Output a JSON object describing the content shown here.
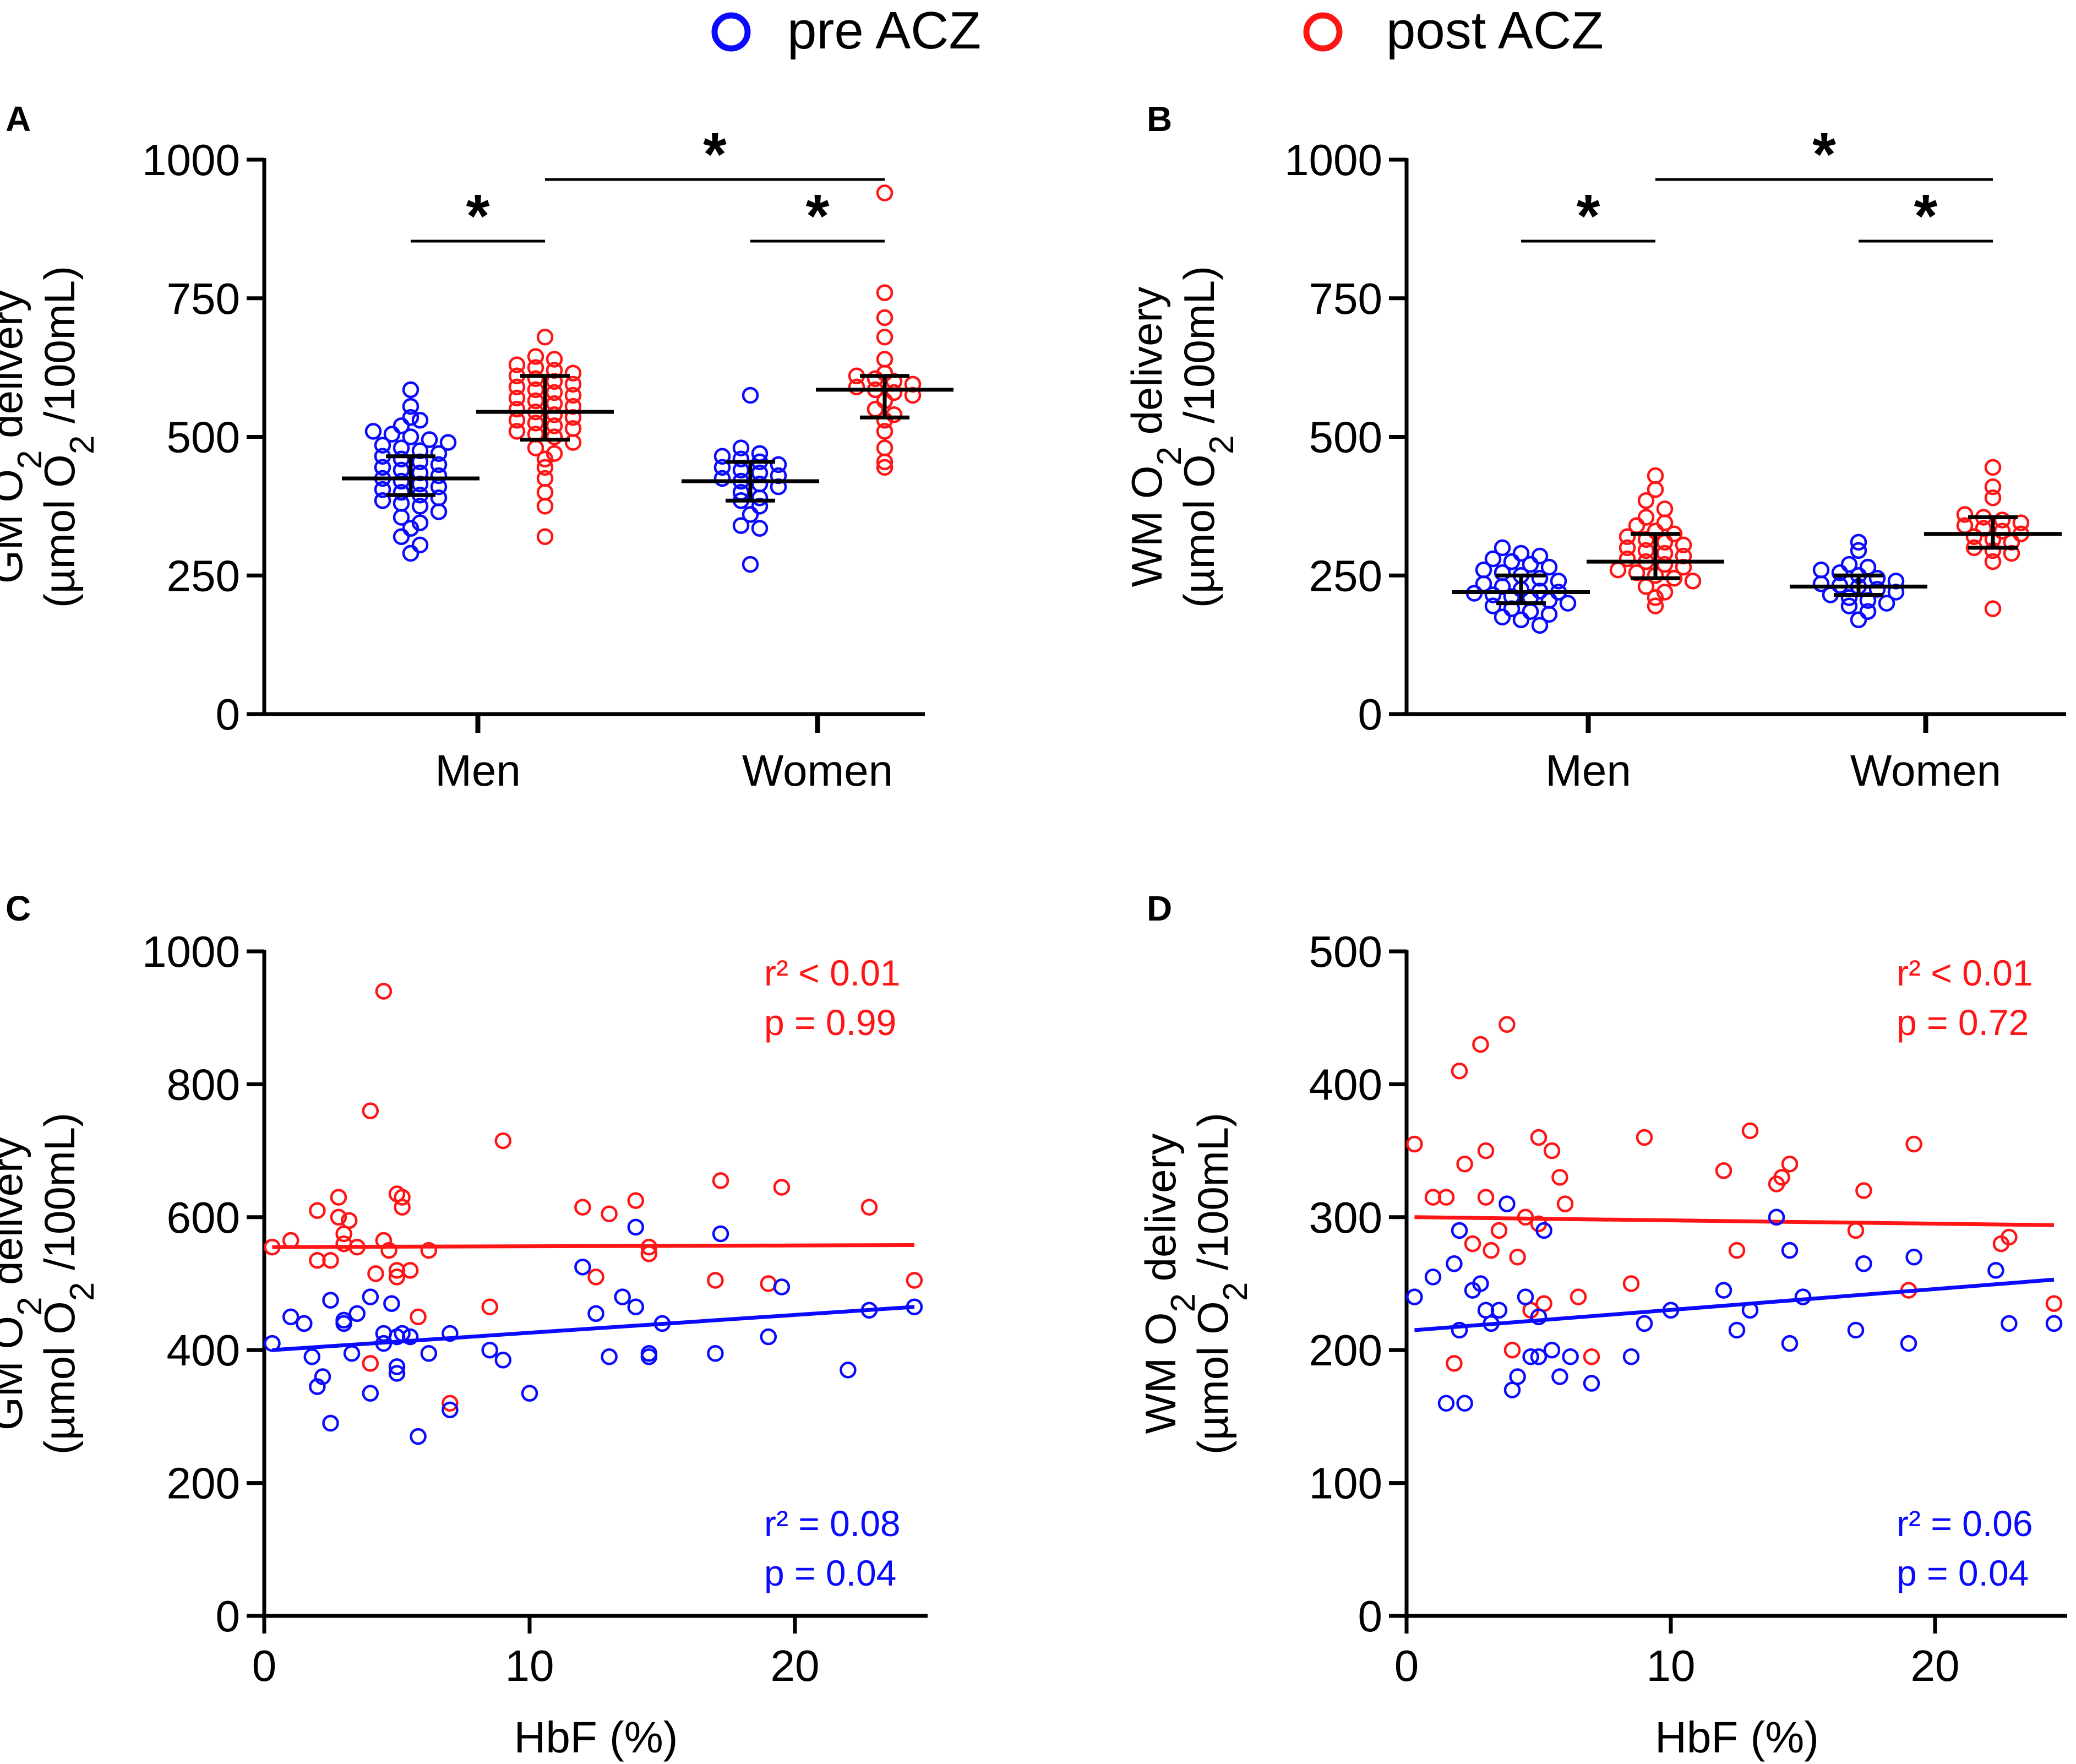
{
  "colors": {
    "pre": "#0a0aff",
    "post": "#ff1515",
    "black": "#000000"
  },
  "legend": [
    {
      "label": "pre ACZ",
      "color": "#0a0aff"
    },
    {
      "label": "post ACZ",
      "color": "#ff1515"
    }
  ],
  "chart_data": [
    {
      "panel_label": "A",
      "type": "scatter",
      "ylabel_line1": "GM  O2 delivery",
      "ylabel_line2": "(µmol O2 /100mL)",
      "ylim": [
        0,
        1000
      ],
      "yticks": [
        "0",
        "250",
        "500",
        "750",
        "1000"
      ],
      "categories": [
        "Men",
        "Women"
      ],
      "groups": [
        {
          "category": "Men",
          "series": "pre ACZ",
          "median": 425,
          "iqr": [
            395,
            465
          ],
          "values": [
            585,
            555,
            535,
            520,
            530,
            510,
            505,
            500,
            495,
            490,
            485,
            480,
            475,
            470,
            465,
            460,
            455,
            450,
            445,
            440,
            435,
            430,
            425,
            420,
            415,
            410,
            405,
            400,
            395,
            390,
            385,
            380,
            375,
            365,
            355,
            345,
            335,
            320,
            305,
            290
          ]
        },
        {
          "category": "Men",
          "series": "post ACZ",
          "median": 545,
          "iqr": [
            495,
            610
          ],
          "values": [
            680,
            645,
            640,
            630,
            625,
            620,
            615,
            610,
            605,
            600,
            595,
            590,
            585,
            580,
            575,
            570,
            565,
            560,
            555,
            550,
            545,
            540,
            535,
            530,
            525,
            520,
            515,
            510,
            505,
            500,
            490,
            480,
            470,
            460,
            445,
            425,
            400,
            375,
            320
          ]
        },
        {
          "category": "Women",
          "series": "pre ACZ",
          "median": 420,
          "iqr": [
            385,
            455
          ],
          "values": [
            575,
            480,
            470,
            465,
            460,
            455,
            450,
            445,
            440,
            435,
            430,
            425,
            420,
            415,
            410,
            400,
            390,
            385,
            375,
            360,
            340,
            335,
            270
          ]
        },
        {
          "category": "Women",
          "series": "post ACZ",
          "median": 585,
          "iqr": [
            535,
            610
          ],
          "values": [
            940,
            760,
            715,
            680,
            640,
            615,
            610,
            605,
            600,
            595,
            590,
            585,
            580,
            575,
            565,
            550,
            540,
            530,
            510,
            480,
            455,
            445
          ]
        }
      ],
      "significance": [
        {
          "label": "*",
          "from": "Men pre ACZ",
          "to": "Men post ACZ"
        },
        {
          "label": "*",
          "from": "Women pre ACZ",
          "to": "Women post ACZ"
        },
        {
          "label": "*",
          "from": "Men post ACZ",
          "to": "Women post ACZ"
        }
      ]
    },
    {
      "panel_label": "B",
      "type": "scatter",
      "ylabel_line1": "WM  O2 delivery",
      "ylabel_line2": "(µmol O2 /100mL)",
      "ylim": [
        0,
        1000
      ],
      "yticks": [
        "0",
        "250",
        "500",
        "750",
        "1000"
      ],
      "categories": [
        "Men",
        "Women"
      ],
      "groups": [
        {
          "category": "Men",
          "series": "pre ACZ",
          "median": 220,
          "iqr": [
            200,
            250
          ],
          "values": [
            300,
            290,
            285,
            280,
            275,
            270,
            265,
            260,
            255,
            250,
            245,
            240,
            235,
            230,
            225,
            222,
            220,
            218,
            215,
            212,
            210,
            205,
            200,
            195,
            190,
            185,
            180,
            175,
            170,
            160
          ]
        },
        {
          "category": "Men",
          "series": "post ACZ",
          "median": 275,
          "iqr": [
            245,
            325
          ],
          "values": [
            430,
            405,
            385,
            370,
            355,
            345,
            340,
            330,
            325,
            320,
            315,
            310,
            305,
            300,
            295,
            290,
            285,
            280,
            275,
            270,
            265,
            260,
            255,
            250,
            245,
            240,
            230,
            220,
            210,
            195
          ]
        },
        {
          "category": "Women",
          "series": "pre ACZ",
          "median": 230,
          "iqr": [
            215,
            250
          ],
          "values": [
            310,
            295,
            270,
            265,
            260,
            255,
            250,
            245,
            240,
            235,
            232,
            230,
            225,
            220,
            215,
            210,
            205,
            200,
            195,
            185,
            170
          ]
        },
        {
          "category": "Women",
          "series": "post ACZ",
          "median": 325,
          "iqr": [
            300,
            355
          ],
          "values": [
            445,
            410,
            390,
            360,
            355,
            350,
            345,
            340,
            335,
            330,
            325,
            320,
            315,
            310,
            300,
            295,
            290,
            275,
            190
          ]
        }
      ],
      "significance": [
        {
          "label": "*",
          "from": "Men pre ACZ",
          "to": "Men post ACZ"
        },
        {
          "label": "*",
          "from": "Women pre ACZ",
          "to": "Women post ACZ"
        },
        {
          "label": "*",
          "from": "Men post ACZ",
          "to": "Women post ACZ"
        }
      ]
    },
    {
      "panel_label": "C",
      "type": "scatter",
      "xlabel": "HbF (%)",
      "ylabel_line1": "GM O2 delivery",
      "ylabel_line2": "(µmol O2 /100mL)",
      "xlim": [
        0,
        25
      ],
      "ylim": [
        0,
        1000
      ],
      "xticks": [
        0,
        10,
        20
      ],
      "yticks": [
        0,
        200,
        400,
        600,
        800,
        1000
      ],
      "series": [
        {
          "name": "post ACZ",
          "fit": [
            [
              0.3,
              555
            ],
            [
              24.5,
              558
            ]
          ],
          "stat_lines": [
            "r² < 0.01",
            "p  = 0.99"
          ],
          "x": [
            0.3,
            1,
            1.5,
            2,
            2,
            2.5,
            2.8,
            2.8,
            3,
            3,
            3.2,
            3.5,
            4,
            4,
            4.2,
            4.5,
            4.5,
            4.7,
            5,
            5,
            5,
            5.2,
            5.2,
            5.5,
            5.8,
            6.2,
            7,
            8.5,
            9,
            12,
            12.5,
            13,
            14,
            14.5,
            14.5,
            17,
            17.2,
            19,
            19.5,
            22.8,
            24.5
          ],
          "y": [
            555,
            565,
            440,
            610,
            535,
            535,
            600,
            630,
            560,
            575,
            595,
            555,
            760,
            380,
            515,
            565,
            940,
            550,
            635,
            520,
            510,
            630,
            615,
            520,
            450,
            550,
            320,
            465,
            715,
            615,
            510,
            605,
            625,
            555,
            545,
            505,
            655,
            500,
            645,
            615,
            505
          ]
        },
        {
          "name": "pre ACZ",
          "fit": [
            [
              0.3,
              400
            ],
            [
              24.5,
              465
            ]
          ],
          "stat_lines": [
            "r² = 0.08",
            "p  = 0.04"
          ],
          "x": [
            0.3,
            1,
            1.5,
            1.8,
            2,
            2.2,
            2.5,
            2.5,
            3,
            3,
            3.3,
            3.5,
            4,
            4,
            4.5,
            4.5,
            4.8,
            5,
            5,
            5,
            5.2,
            5.5,
            5.8,
            6.2,
            7,
            7,
            8.5,
            9,
            10,
            12,
            12.5,
            13,
            13.5,
            14,
            14,
            14.5,
            14.5,
            15,
            17,
            17.2,
            19,
            19.5,
            22,
            22.8,
            24.5
          ],
          "y": [
            410,
            450,
            440,
            390,
            345,
            360,
            475,
            290,
            440,
            445,
            395,
            455,
            480,
            335,
            425,
            410,
            470,
            420,
            375,
            365,
            425,
            420,
            270,
            395,
            425,
            310,
            400,
            385,
            335,
            525,
            455,
            390,
            480,
            465,
            585,
            390,
            395,
            440,
            395,
            575,
            420,
            495,
            370,
            460,
            465
          ]
        }
      ]
    },
    {
      "panel_label": "D",
      "type": "scatter",
      "xlabel": "HbF (%)",
      "ylabel_line1": "WM O2 delivery",
      "ylabel_line2": "(µmol O2 /100mL)",
      "xlim": [
        0,
        25
      ],
      "ylim": [
        0,
        500
      ],
      "xticks": [
        0,
        10,
        20
      ],
      "yticks": [
        0,
        100,
        200,
        300,
        400,
        500
      ],
      "series": [
        {
          "name": "post ACZ",
          "fit": [
            [
              0.3,
              300
            ],
            [
              24.5,
              294
            ]
          ],
          "stat_lines": [
            "r² < 0.01",
            "p  = 0.72"
          ],
          "x": [
            0.3,
            1,
            1.5,
            1.8,
            2,
            2.2,
            2.5,
            2.8,
            3,
            3,
            3.2,
            3.5,
            3.8,
            4,
            4.2,
            4.5,
            4.7,
            5,
            5,
            5.2,
            5.5,
            5.8,
            6,
            6.5,
            7,
            8.5,
            9,
            12,
            12.5,
            13,
            14,
            14.2,
            14.5,
            17,
            17.3,
            19,
            19.2,
            22.5,
            22.8,
            24.5
          ],
          "y": [
            355,
            315,
            315,
            190,
            410,
            340,
            280,
            430,
            350,
            315,
            275,
            290,
            445,
            200,
            270,
            300,
            230,
            360,
            295,
            235,
            350,
            330,
            310,
            240,
            195,
            250,
            360,
            335,
            275,
            365,
            325,
            330,
            340,
            290,
            320,
            245,
            355,
            280,
            285,
            235
          ]
        },
        {
          "name": "pre ACZ",
          "fit": [
            [
              0.3,
              215
            ],
            [
              24.5,
              253
            ]
          ],
          "stat_lines": [
            "r² = 0.06",
            "p  = 0.04"
          ],
          "x": [
            0.3,
            1,
            1.5,
            1.8,
            2,
            2,
            2.2,
            2.5,
            2.8,
            3,
            3.2,
            3.5,
            3.8,
            4,
            4.2,
            4.5,
            4.7,
            5,
            5,
            5.2,
            5.5,
            5.8,
            6.2,
            7,
            8.5,
            9,
            10,
            12,
            12.5,
            13,
            14,
            14.5,
            14.5,
            15,
            17,
            17.3,
            19,
            19.2,
            22.3,
            22.8,
            24.5
          ],
          "y": [
            240,
            255,
            160,
            265,
            215,
            290,
            160,
            245,
            250,
            230,
            220,
            230,
            310,
            170,
            180,
            240,
            195,
            195,
            225,
            290,
            200,
            180,
            195,
            175,
            195,
            220,
            230,
            245,
            215,
            230,
            300,
            205,
            275,
            240,
            215,
            265,
            205,
            270,
            260,
            220,
            220
          ]
        }
      ]
    }
  ]
}
